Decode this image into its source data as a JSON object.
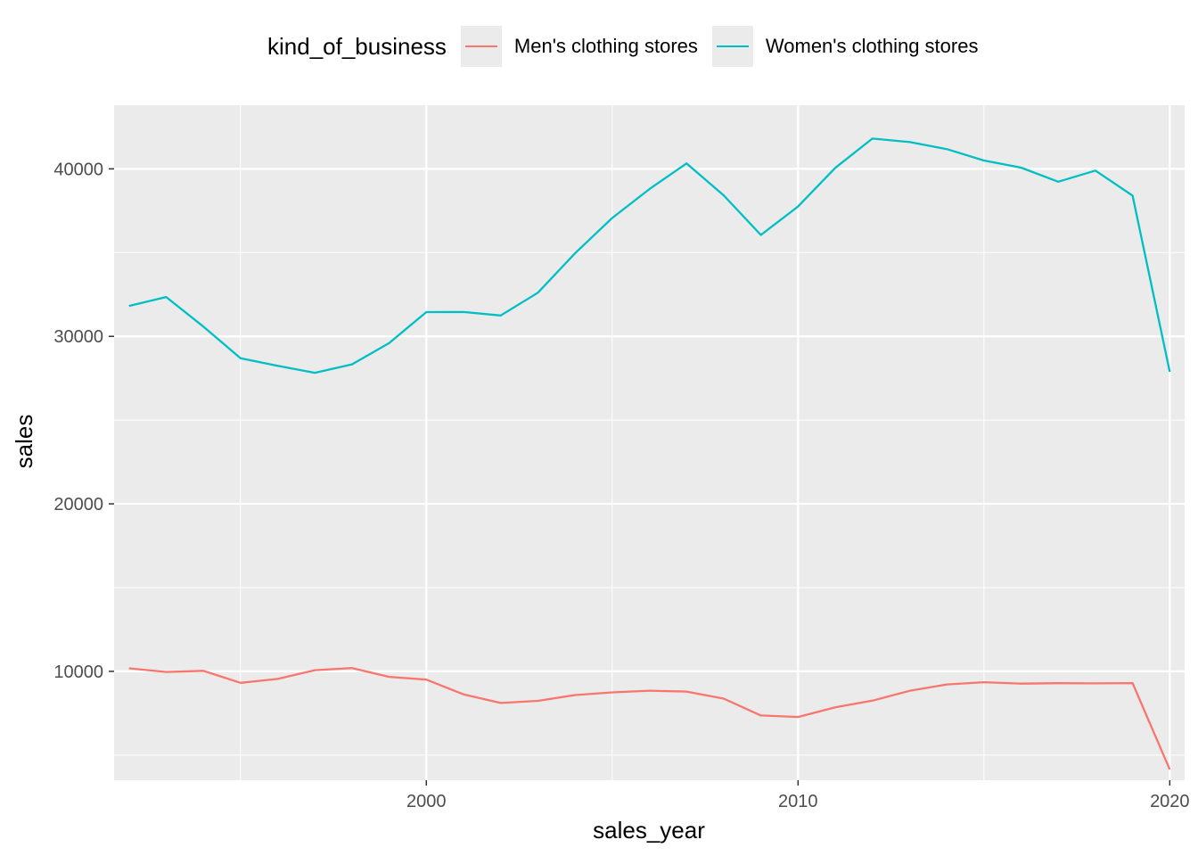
{
  "chart_data": {
    "type": "line",
    "xlabel": "sales_year",
    "ylabel": "sales",
    "xlim": [
      1991.6,
      2020.4
    ],
    "ylim": [
      3500,
      43800
    ],
    "x_ticks": [
      2000,
      2010,
      2020
    ],
    "y_ticks": [
      10000,
      20000,
      30000,
      40000
    ],
    "grid": true,
    "legend": {
      "title": "kind_of_business",
      "position": "top"
    },
    "x": [
      1992,
      1993,
      1994,
      1995,
      1996,
      1997,
      1998,
      1999,
      2000,
      2001,
      2002,
      2003,
      2004,
      2005,
      2006,
      2007,
      2008,
      2009,
      2010,
      2011,
      2012,
      2013,
      2014,
      2015,
      2016,
      2017,
      2018,
      2019,
      2020
    ],
    "series": [
      {
        "name": "Men's clothing stores",
        "color": "#F8766D",
        "values": [
          10179,
          9962,
          10032,
          9315,
          9546,
          10069,
          10196,
          9670,
          9507,
          8625,
          8112,
          8239,
          8585,
          8745,
          8846,
          8790,
          8370,
          7363,
          7277,
          7851,
          8247,
          8834,
          9216,
          9353,
          9267,
          9291,
          9281,
          9296,
          4143
        ]
      },
      {
        "name": "Women's clothing stores",
        "color": "#00BFC4",
        "values": [
          31815,
          32350,
          30585,
          28696,
          28238,
          27822,
          28332,
          29604,
          31447,
          31455,
          31248,
          32606,
          34960,
          37065,
          38791,
          40324,
          38416,
          36056,
          37750,
          40055,
          41809,
          41600,
          41183,
          40498,
          40071,
          39234,
          39898,
          38404,
          27881
        ]
      }
    ]
  }
}
